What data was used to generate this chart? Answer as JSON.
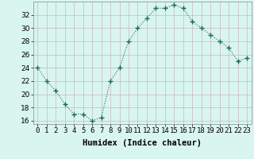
{
  "x": [
    0,
    1,
    2,
    3,
    4,
    5,
    6,
    7,
    8,
    9,
    10,
    11,
    12,
    13,
    14,
    15,
    16,
    17,
    18,
    19,
    20,
    21,
    22,
    23
  ],
  "y": [
    24,
    22,
    20.5,
    18.5,
    17,
    17,
    16,
    16.5,
    22,
    24,
    28,
    30,
    31.5,
    33,
    33,
    33.5,
    33,
    31,
    30,
    29,
    28,
    27,
    25,
    25.5
  ],
  "line_color": "#1a6b5a",
  "marker": "+",
  "marker_size": 4,
  "bg_color": "#d9f5f0",
  "grid_color": "#c8b8b8",
  "xlabel": "Humidex (Indice chaleur)",
  "ylim": [
    15.5,
    34
  ],
  "yticks": [
    16,
    18,
    20,
    22,
    24,
    26,
    28,
    30,
    32
  ],
  "xlim": [
    -0.5,
    23.5
  ],
  "xticks": [
    0,
    1,
    2,
    3,
    4,
    5,
    6,
    7,
    8,
    9,
    10,
    11,
    12,
    13,
    14,
    15,
    16,
    17,
    18,
    19,
    20,
    21,
    22,
    23
  ],
  "xtick_labels": [
    "0",
    "1",
    "2",
    "3",
    "4",
    "5",
    "6",
    "7",
    "8",
    "9",
    "10",
    "11",
    "12",
    "13",
    "14",
    "15",
    "16",
    "17",
    "18",
    "19",
    "20",
    "21",
    "22",
    "23"
  ],
  "label_fontsize": 7.5,
  "tick_fontsize": 6.5
}
